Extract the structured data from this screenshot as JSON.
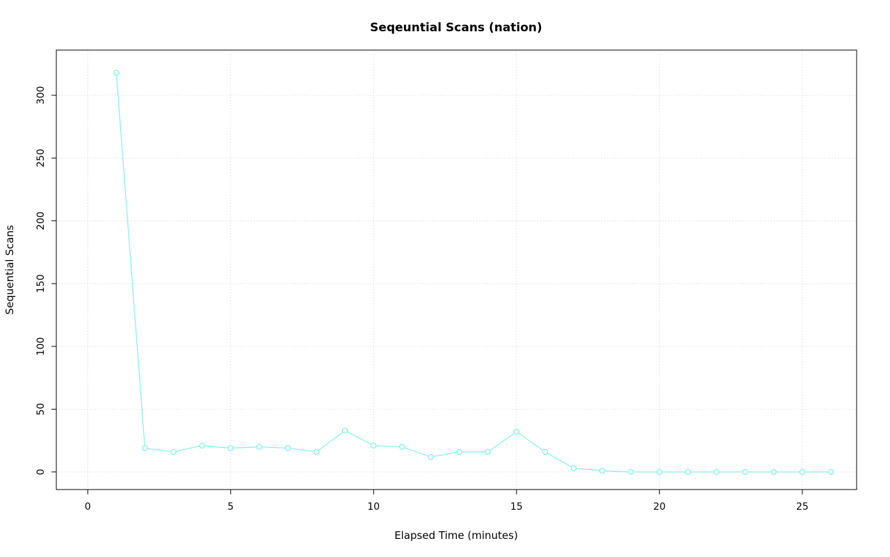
{
  "page": {
    "background": "#ffffff"
  },
  "chart_data": {
    "type": "line",
    "title": "Seqeuntial Scans (nation)",
    "xlabel": "Elapsed Time (minutes)",
    "ylabel": "Sequential Scans",
    "x": [
      1,
      2,
      3,
      4,
      5,
      6,
      7,
      8,
      9,
      10,
      11,
      12,
      13,
      14,
      15,
      16,
      17,
      18,
      19,
      20,
      21,
      22,
      23,
      24,
      25,
      26
    ],
    "values": [
      318,
      19,
      16,
      21,
      19,
      20,
      19,
      16,
      33,
      21,
      20,
      12,
      16,
      16,
      32,
      16,
      3,
      1,
      0,
      0,
      0,
      0,
      0,
      0,
      0,
      0
    ],
    "series_color": "#8AEFEC",
    "marker": "open-circle",
    "xticks": [
      0,
      5,
      10,
      15,
      20,
      25
    ],
    "yticks": [
      0,
      50,
      100,
      150,
      200,
      250,
      300
    ],
    "xlim": [
      -1.1,
      26.9
    ],
    "ylim": [
      -14,
      336
    ],
    "grid": true,
    "grid_color": "#cfcfcf",
    "grid_style": "dotted",
    "axis_color": "#000000",
    "legend": "none"
  }
}
